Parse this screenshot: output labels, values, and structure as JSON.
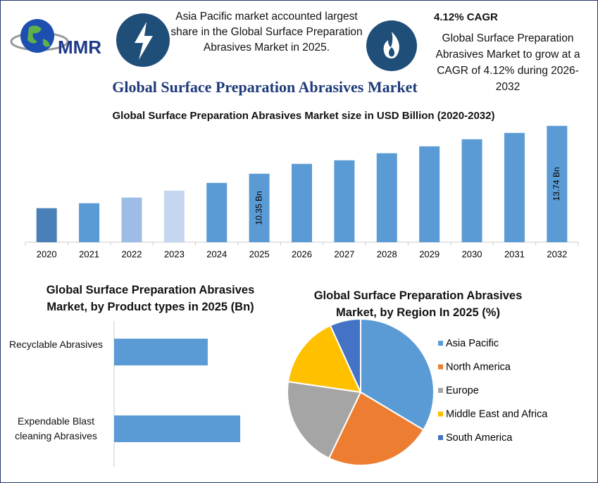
{
  "logo_text": "MMR",
  "header": {
    "left_note": "Asia Pacific market accounted largest share in the Global Surface Preparation Abrasives Market in 2025.",
    "cagr_title": "4.12% CAGR",
    "cagr_note": "Global Surface Preparation Abrasives Market to grow at a CAGR of 4.12% during 2026-2032",
    "title": "Global Surface Preparation Abrasives Market"
  },
  "chart_data": [
    {
      "type": "bar",
      "title": "Global Surface Preparation Abrasives Market size in USD Billion (2020-2032)",
      "categories": [
        "2020",
        "2021",
        "2022",
        "2023",
        "2024",
        "2025",
        "2026",
        "2027",
        "2028",
        "2029",
        "2030",
        "2031",
        "2032"
      ],
      "values": [
        7.91,
        8.26,
        8.66,
        9.15,
        9.7,
        10.35,
        11.05,
        11.3,
        11.8,
        12.29,
        12.79,
        13.24,
        13.74
      ],
      "value_labels": [
        null,
        null,
        null,
        null,
        null,
        "10.35 Bn",
        null,
        null,
        null,
        null,
        null,
        null,
        "13.74 Bn"
      ],
      "colors": [
        "#4a80b8",
        "#5b9bd5",
        "#9dbde6",
        "#c5d7f0",
        "#5b9bd5",
        "#5b9bd5",
        "#5b9bd5",
        "#5b9bd5",
        "#5b9bd5",
        "#5b9bd5",
        "#5b9bd5",
        "#5b9bd5",
        "#5b9bd5"
      ],
      "ylim": [
        5.5,
        14.5
      ]
    },
    {
      "type": "hbar",
      "title": "Global Surface Preparation Abrasives Market, by Product types in 2025 (Bn)",
      "categories": [
        "Recyclable Abrasives",
        "Expendable Blast cleaning Abrasives"
      ],
      "values": [
        4.41,
        5.94
      ],
      "color": "#5b9bd5",
      "xlim": [
        0,
        7
      ]
    },
    {
      "type": "pie",
      "title": "Global Surface Preparation Abrasives Market, by Region In 2025 (%)",
      "categories": [
        "Asia Pacific",
        "North America",
        "Europe",
        "Middle East and Africa",
        "South America"
      ],
      "values": [
        33.6,
        23.5,
        20.2,
        15.9,
        6.8
      ],
      "colors": [
        "#5b9bd5",
        "#ed7d31",
        "#a5a5a5",
        "#ffc000",
        "#4472c4"
      ],
      "legend": "right"
    }
  ]
}
